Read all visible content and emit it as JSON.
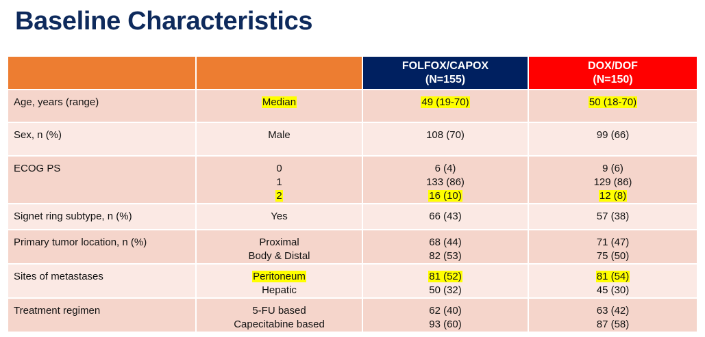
{
  "title": "Baseline Characteristics",
  "table": {
    "header_color": "#ed7d31",
    "highlight_color": "#ffff00",
    "row_colors": [
      "#f5d5cb",
      "#fbe9e4"
    ],
    "arms": [
      {
        "name": "FOLFOX/CAPOX",
        "n": "(N=155)",
        "color": "#002060"
      },
      {
        "name": "DOX/DOF",
        "n": "(N=150)",
        "color": "#ff0000"
      }
    ],
    "rows": [
      {
        "label": "Age, years (range)",
        "sub": [
          {
            "text": "Median",
            "highlight": true
          }
        ],
        "values": [
          [
            {
              "text": "49 (19-70)",
              "highlight": true
            }
          ],
          [
            {
              "text": "50 (18-70)",
              "highlight": true
            }
          ]
        ]
      },
      {
        "label": "Sex, n (%)",
        "sub": [
          "Male"
        ],
        "values": [
          [
            "108 (70)"
          ],
          [
            "99 (66)"
          ]
        ]
      },
      {
        "label": "ECOG PS",
        "sub": [
          "0",
          "1",
          {
            "text": "2",
            "highlight": true
          }
        ],
        "values": [
          [
            "6 (4)",
            "133 (86)",
            {
              "text": "16 (10)",
              "highlight": true
            }
          ],
          [
            "9 (6)",
            "129 (86)",
            {
              "text": "12 (8)",
              "highlight": true
            }
          ]
        ]
      },
      {
        "label": "Signet ring subtype, n (%)",
        "sub": [
          "Yes"
        ],
        "values": [
          [
            "66 (43)"
          ],
          [
            "57 (38)"
          ]
        ]
      },
      {
        "label": "Primary tumor location, n (%)",
        "sub": [
          "Proximal",
          "Body & Distal"
        ],
        "values": [
          [
            "68 (44)",
            "82 (53)"
          ],
          [
            "71 (47)",
            "75 (50)"
          ]
        ]
      },
      {
        "label": "Sites of metastases",
        "sub": [
          {
            "text": "Peritoneum",
            "highlight": true
          },
          "Hepatic"
        ],
        "values": [
          [
            {
              "text": "81 (52)",
              "highlight": true
            },
            "50 (32)"
          ],
          [
            {
              "text": "81 (54)",
              "highlight": true
            },
            "45 (30)"
          ]
        ]
      },
      {
        "label": "Treatment regimen",
        "sub": [
          "5-FU based",
          "Capecitabine based"
        ],
        "values": [
          [
            "62 (40)",
            "93 (60)"
          ],
          [
            "63 (42)",
            "87 (58)"
          ]
        ]
      }
    ]
  }
}
